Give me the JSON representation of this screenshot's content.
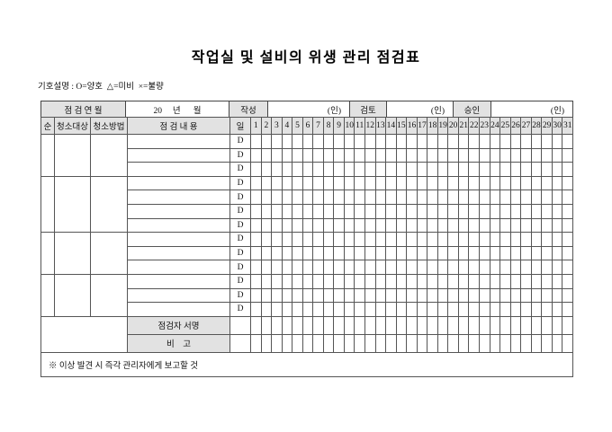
{
  "page": {
    "title": "작업실 및 설비의 위생 관리 점검표",
    "legend": "기호설명 : O=양호  △=미비  ×=불량",
    "footer_note": "※ 이상 발견 시 즉각 관리자에게 보고할 것"
  },
  "header": {
    "year_month_label": "점 검 연 월",
    "year_month_value": "20     년      월",
    "writer_label": "작성",
    "reviewer_label": "검토",
    "approver_label": "승인",
    "seal_label": "(인)"
  },
  "columns": {
    "seq_label": "순",
    "target_label": "청소대상",
    "method_label": "청소방법",
    "content_label": "점 검 내 용",
    "day_label": "일",
    "days": [
      "1",
      "2",
      "3",
      "4",
      "5",
      "6",
      "7",
      "8",
      "9",
      "10",
      "11",
      "12",
      "13",
      "14",
      "15",
      "16",
      "17",
      "18",
      "19",
      "20",
      "21",
      "22",
      "23",
      "24",
      "25",
      "26",
      "27",
      "28",
      "29",
      "30",
      "31"
    ]
  },
  "body": {
    "day_marker": "D",
    "group_row_counts": [
      3,
      4,
      3,
      3
    ],
    "signature_label": "점검자 서명",
    "remarks_label": "비    고"
  }
}
